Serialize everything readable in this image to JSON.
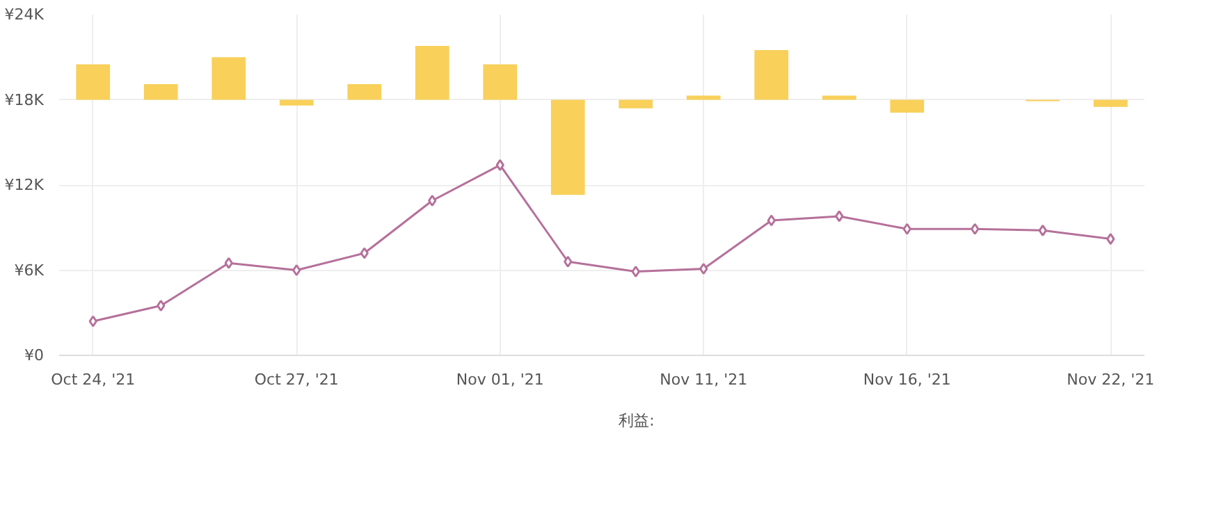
{
  "chart_data": {
    "type": "line",
    "categories": [
      "Oct 24, '21",
      null,
      null,
      "Oct 27, '21",
      null,
      null,
      "Nov 01, '21",
      null,
      null,
      "Nov 11, '21",
      null,
      null,
      "Nov 16, '21",
      null,
      null,
      "Nov 22, '21"
    ],
    "series": [
      {
        "name": "利益:",
        "type": "bar",
        "color": "#f8d05a",
        "base": [
          18000,
          18000,
          18000,
          18000,
          18000,
          18000,
          18000,
          18000,
          18000,
          18000,
          18000,
          18000,
          18000,
          null,
          18000,
          18000
        ],
        "values": [
          2500,
          1100,
          3000,
          -400,
          1100,
          3800,
          2500,
          -6700,
          -600,
          300,
          3500,
          300,
          -900,
          null,
          -100,
          -500
        ]
      },
      {
        "color": "#b5709a",
        "marker": "diamond",
        "values": [
          2400,
          3500,
          6500,
          6000,
          7200,
          10900,
          13400,
          6600,
          5900,
          6100,
          9500,
          9800,
          8900,
          8900,
          8800,
          8200
        ]
      }
    ],
    "ylim": [
      0,
      24000
    ],
    "yticks": [
      {
        "value": 0,
        "label": "¥0"
      },
      {
        "value": 6000,
        "label": "¥6K"
      },
      {
        "value": 12000,
        "label": "¥12K"
      },
      {
        "value": 18000,
        "label": "¥18K"
      },
      {
        "value": 24000,
        "label": "¥24K"
      }
    ],
    "grid": true,
    "legend": "bottom"
  }
}
